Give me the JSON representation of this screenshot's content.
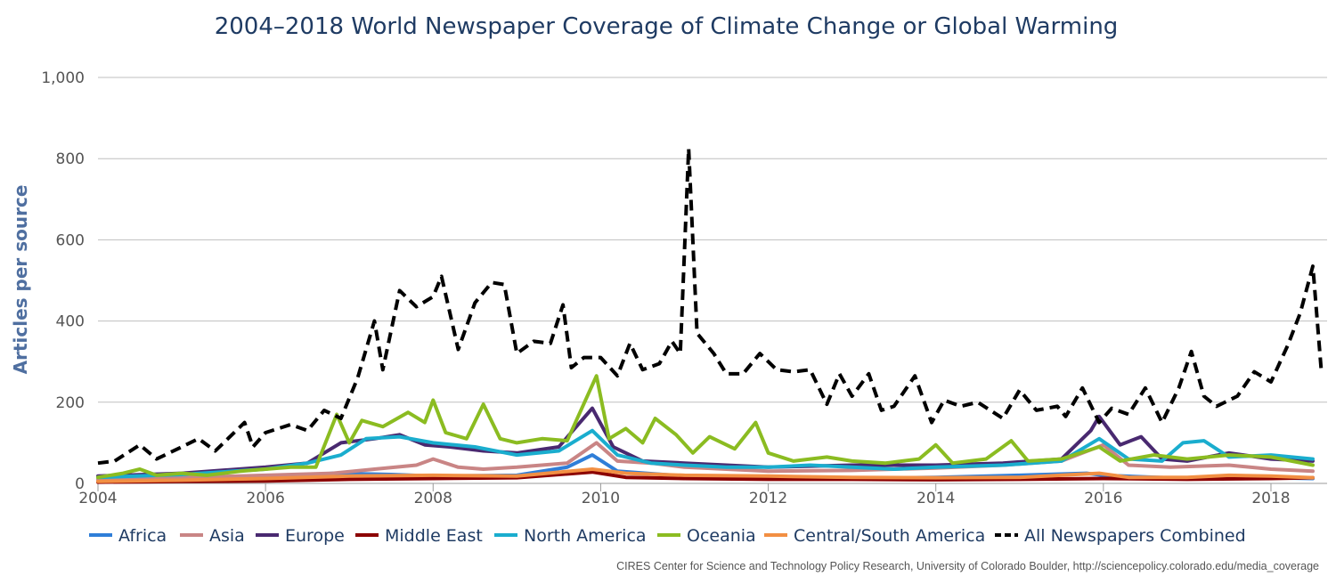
{
  "chart_data": {
    "type": "line",
    "title": "2004–2018 World Newspaper Coverage of Climate Change or Global Warming",
    "ylabel": "Articles per source",
    "xlabel": "",
    "credit": "CIRES Center for Science and Technology Policy Research, University of Colorado Boulder, http://sciencepolicy.colorado.edu/media_coverage",
    "xlim": [
      2004,
      2018.67
    ],
    "ylim": [
      0,
      1000
    ],
    "x_ticks": [
      2004,
      2006,
      2008,
      2010,
      2012,
      2014,
      2016,
      2018
    ],
    "x_tick_labels": [
      "2004",
      "2006",
      "2008",
      "2010",
      "2012",
      "2014",
      "2016",
      "2018"
    ],
    "y_ticks": [
      0,
      200,
      400,
      600,
      800,
      1000
    ],
    "y_tick_labels": [
      "0",
      "200",
      "400",
      "600",
      "800",
      "1,000"
    ],
    "grid": "horizontal",
    "legend_position": "bottom",
    "series": [
      {
        "name": "Africa",
        "color": "#2f7ed8",
        "dashed": false,
        "points": [
          [
            2004,
            5
          ],
          [
            2005,
            6
          ],
          [
            2006,
            10
          ],
          [
            2006.8,
            25
          ],
          [
            2007.5,
            22
          ],
          [
            2008,
            18
          ],
          [
            2009,
            20
          ],
          [
            2009.6,
            40
          ],
          [
            2009.9,
            70
          ],
          [
            2010.2,
            30
          ],
          [
            2011,
            18
          ],
          [
            2012,
            15
          ],
          [
            2013,
            12
          ],
          [
            2014,
            15
          ],
          [
            2015,
            20
          ],
          [
            2015.8,
            25
          ],
          [
            2016,
            20
          ],
          [
            2017,
            12
          ],
          [
            2018,
            14
          ],
          [
            2018.5,
            12
          ]
        ]
      },
      {
        "name": "Asia",
        "color": "#c98585",
        "dashed": false,
        "points": [
          [
            2004,
            10
          ],
          [
            2005,
            14
          ],
          [
            2006,
            20
          ],
          [
            2006.8,
            25
          ],
          [
            2007.3,
            35
          ],
          [
            2007.8,
            45
          ],
          [
            2008,
            60
          ],
          [
            2008.3,
            40
          ],
          [
            2008.6,
            35
          ],
          [
            2009,
            40
          ],
          [
            2009.6,
            50
          ],
          [
            2009.95,
            100
          ],
          [
            2010.2,
            55
          ],
          [
            2010.6,
            50
          ],
          [
            2011,
            40
          ],
          [
            2011.5,
            35
          ],
          [
            2012,
            30
          ],
          [
            2013,
            32
          ],
          [
            2014,
            38
          ],
          [
            2014.8,
            45
          ],
          [
            2015.5,
            55
          ],
          [
            2016,
            95
          ],
          [
            2016.3,
            45
          ],
          [
            2016.8,
            40
          ],
          [
            2017.5,
            45
          ],
          [
            2018,
            35
          ],
          [
            2018.5,
            30
          ]
        ]
      },
      {
        "name": "Europe",
        "color": "#492970",
        "dashed": false,
        "points": [
          [
            2004,
            18
          ],
          [
            2005,
            25
          ],
          [
            2006,
            40
          ],
          [
            2006.5,
            50
          ],
          [
            2006.9,
            100
          ],
          [
            2007.3,
            110
          ],
          [
            2007.6,
            120
          ],
          [
            2007.9,
            95
          ],
          [
            2008.2,
            90
          ],
          [
            2008.6,
            80
          ],
          [
            2009,
            75
          ],
          [
            2009.5,
            90
          ],
          [
            2009.9,
            185
          ],
          [
            2010.15,
            90
          ],
          [
            2010.5,
            55
          ],
          [
            2011,
            50
          ],
          [
            2011.5,
            45
          ],
          [
            2012,
            40
          ],
          [
            2013,
            45
          ],
          [
            2014,
            45
          ],
          [
            2014.8,
            50
          ],
          [
            2015.5,
            60
          ],
          [
            2015.85,
            130
          ],
          [
            2015.95,
            165
          ],
          [
            2016.2,
            95
          ],
          [
            2016.45,
            115
          ],
          [
            2016.7,
            60
          ],
          [
            2017,
            55
          ],
          [
            2017.5,
            75
          ],
          [
            2018,
            60
          ],
          [
            2018.5,
            55
          ]
        ]
      },
      {
        "name": "Middle East",
        "color": "#8b0000",
        "dashed": false,
        "points": [
          [
            2004,
            3
          ],
          [
            2005,
            5
          ],
          [
            2006,
            6
          ],
          [
            2007,
            10
          ],
          [
            2008,
            12
          ],
          [
            2009,
            14
          ],
          [
            2009.9,
            28
          ],
          [
            2010.3,
            15
          ],
          [
            2011,
            12
          ],
          [
            2012,
            10
          ],
          [
            2013,
            10
          ],
          [
            2014,
            9
          ],
          [
            2015,
            10
          ],
          [
            2016,
            12
          ],
          [
            2017,
            10
          ],
          [
            2018,
            12
          ],
          [
            2018.5,
            14
          ]
        ]
      },
      {
        "name": "North America",
        "color": "#1aadce",
        "dashed": false,
        "points": [
          [
            2004,
            15
          ],
          [
            2005,
            22
          ],
          [
            2006,
            35
          ],
          [
            2006.5,
            50
          ],
          [
            2006.9,
            70
          ],
          [
            2007.2,
            110
          ],
          [
            2007.6,
            115
          ],
          [
            2008,
            100
          ],
          [
            2008.5,
            90
          ],
          [
            2009,
            70
          ],
          [
            2009.5,
            80
          ],
          [
            2009.9,
            130
          ],
          [
            2010.2,
            70
          ],
          [
            2010.6,
            50
          ],
          [
            2011,
            45
          ],
          [
            2011.5,
            40
          ],
          [
            2012,
            40
          ],
          [
            2012.5,
            45
          ],
          [
            2013,
            40
          ],
          [
            2013.5,
            35
          ],
          [
            2014,
            40
          ],
          [
            2014.8,
            45
          ],
          [
            2015.5,
            55
          ],
          [
            2015.95,
            110
          ],
          [
            2016.3,
            60
          ],
          [
            2016.7,
            55
          ],
          [
            2016.95,
            100
          ],
          [
            2017.2,
            105
          ],
          [
            2017.5,
            65
          ],
          [
            2018,
            70
          ],
          [
            2018.5,
            60
          ]
        ]
      },
      {
        "name": "Oceania",
        "color": "#8bbc21",
        "dashed": false,
        "points": [
          [
            2004,
            15
          ],
          [
            2004.3,
            25
          ],
          [
            2004.5,
            35
          ],
          [
            2004.7,
            20
          ],
          [
            2005,
            25
          ],
          [
            2005.3,
            20
          ],
          [
            2005.7,
            30
          ],
          [
            2006,
            35
          ],
          [
            2006.3,
            40
          ],
          [
            2006.6,
            40
          ],
          [
            2006.85,
            170
          ],
          [
            2007,
            100
          ],
          [
            2007.15,
            155
          ],
          [
            2007.4,
            140
          ],
          [
            2007.7,
            175
          ],
          [
            2007.9,
            150
          ],
          [
            2008,
            205
          ],
          [
            2008.15,
            125
          ],
          [
            2008.4,
            110
          ],
          [
            2008.6,
            195
          ],
          [
            2008.8,
            110
          ],
          [
            2009,
            100
          ],
          [
            2009.3,
            110
          ],
          [
            2009.6,
            105
          ],
          [
            2009.95,
            265
          ],
          [
            2010.1,
            110
          ],
          [
            2010.3,
            135
          ],
          [
            2010.5,
            100
          ],
          [
            2010.65,
            160
          ],
          [
            2010.9,
            120
          ],
          [
            2011.1,
            75
          ],
          [
            2011.3,
            115
          ],
          [
            2011.6,
            85
          ],
          [
            2011.85,
            150
          ],
          [
            2012,
            75
          ],
          [
            2012.3,
            55
          ],
          [
            2012.7,
            65
          ],
          [
            2013,
            55
          ],
          [
            2013.4,
            50
          ],
          [
            2013.8,
            60
          ],
          [
            2014,
            95
          ],
          [
            2014.2,
            50
          ],
          [
            2014.6,
            60
          ],
          [
            2014.9,
            105
          ],
          [
            2015.1,
            55
          ],
          [
            2015.5,
            60
          ],
          [
            2015.95,
            90
          ],
          [
            2016.2,
            55
          ],
          [
            2016.6,
            70
          ],
          [
            2017,
            60
          ],
          [
            2017.5,
            70
          ],
          [
            2018,
            65
          ],
          [
            2018.5,
            45
          ]
        ]
      },
      {
        "name": "Central/South America",
        "color": "#f28f43",
        "dashed": false,
        "points": [
          [
            2004,
            5
          ],
          [
            2005,
            8
          ],
          [
            2006,
            12
          ],
          [
            2007,
            18
          ],
          [
            2008,
            20
          ],
          [
            2009,
            18
          ],
          [
            2009.9,
            35
          ],
          [
            2010.3,
            25
          ],
          [
            2011,
            20
          ],
          [
            2012,
            18
          ],
          [
            2013,
            15
          ],
          [
            2014,
            14
          ],
          [
            2015,
            15
          ],
          [
            2015.95,
            25
          ],
          [
            2016.3,
            15
          ],
          [
            2017,
            15
          ],
          [
            2017.5,
            20
          ],
          [
            2018,
            18
          ],
          [
            2018.5,
            14
          ]
        ]
      },
      {
        "name": "All Newspapers Combined",
        "color": "#000000",
        "dashed": true,
        "points": [
          [
            2004,
            50
          ],
          [
            2004.2,
            55
          ],
          [
            2004.5,
            95
          ],
          [
            2004.7,
            60
          ],
          [
            2005,
            90
          ],
          [
            2005.2,
            110
          ],
          [
            2005.4,
            80
          ],
          [
            2005.75,
            150
          ],
          [
            2005.85,
            90
          ],
          [
            2006,
            125
          ],
          [
            2006.3,
            145
          ],
          [
            2006.5,
            130
          ],
          [
            2006.7,
            180
          ],
          [
            2006.9,
            160
          ],
          [
            2007.1,
            260
          ],
          [
            2007.3,
            400
          ],
          [
            2007.4,
            280
          ],
          [
            2007.6,
            475
          ],
          [
            2007.8,
            435
          ],
          [
            2008,
            460
          ],
          [
            2008.1,
            510
          ],
          [
            2008.3,
            330
          ],
          [
            2008.5,
            445
          ],
          [
            2008.7,
            495
          ],
          [
            2008.85,
            490
          ],
          [
            2009,
            320
          ],
          [
            2009.2,
            350
          ],
          [
            2009.4,
            345
          ],
          [
            2009.55,
            440
          ],
          [
            2009.65,
            285
          ],
          [
            2009.8,
            310
          ],
          [
            2010,
            310
          ],
          [
            2010.2,
            265
          ],
          [
            2010.35,
            345
          ],
          [
            2010.5,
            280
          ],
          [
            2010.7,
            295
          ],
          [
            2010.85,
            350
          ],
          [
            2010.95,
            320
          ],
          [
            2011.05,
            825
          ],
          [
            2011.15,
            370
          ],
          [
            2011.35,
            320
          ],
          [
            2011.5,
            270
          ],
          [
            2011.7,
            270
          ],
          [
            2011.9,
            320
          ],
          [
            2012.1,
            280
          ],
          [
            2012.3,
            275
          ],
          [
            2012.5,
            280
          ],
          [
            2012.7,
            195
          ],
          [
            2012.85,
            270
          ],
          [
            2013,
            215
          ],
          [
            2013.2,
            270
          ],
          [
            2013.35,
            180
          ],
          [
            2013.5,
            190
          ],
          [
            2013.75,
            265
          ],
          [
            2013.95,
            150
          ],
          [
            2014.1,
            205
          ],
          [
            2014.3,
            190
          ],
          [
            2014.5,
            200
          ],
          [
            2014.8,
            160
          ],
          [
            2015,
            230
          ],
          [
            2015.2,
            180
          ],
          [
            2015.45,
            190
          ],
          [
            2015.55,
            165
          ],
          [
            2015.75,
            235
          ],
          [
            2015.95,
            150
          ],
          [
            2016.1,
            185
          ],
          [
            2016.3,
            170
          ],
          [
            2016.5,
            235
          ],
          [
            2016.7,
            150
          ],
          [
            2016.9,
            235
          ],
          [
            2017.05,
            325
          ],
          [
            2017.2,
            215
          ],
          [
            2017.35,
            190
          ],
          [
            2017.6,
            215
          ],
          [
            2017.8,
            275
          ],
          [
            2018,
            250
          ],
          [
            2018.2,
            340
          ],
          [
            2018.35,
            420
          ],
          [
            2018.5,
            535
          ],
          [
            2018.6,
            280
          ]
        ]
      }
    ]
  },
  "legend": {
    "items": [
      {
        "label": "Africa",
        "color": "#2f7ed8",
        "dashed": false
      },
      {
        "label": "Asia",
        "color": "#c98585",
        "dashed": false
      },
      {
        "label": "Europe",
        "color": "#492970",
        "dashed": false
      },
      {
        "label": "Middle East",
        "color": "#8b0000",
        "dashed": false
      },
      {
        "label": "North America",
        "color": "#1aadce",
        "dashed": false
      },
      {
        "label": "Oceania",
        "color": "#8bbc21",
        "dashed": false
      },
      {
        "label": "Central/South America",
        "color": "#f28f43",
        "dashed": false
      },
      {
        "label": "All Newspapers Combined",
        "color": "#000000",
        "dashed": true
      }
    ]
  }
}
